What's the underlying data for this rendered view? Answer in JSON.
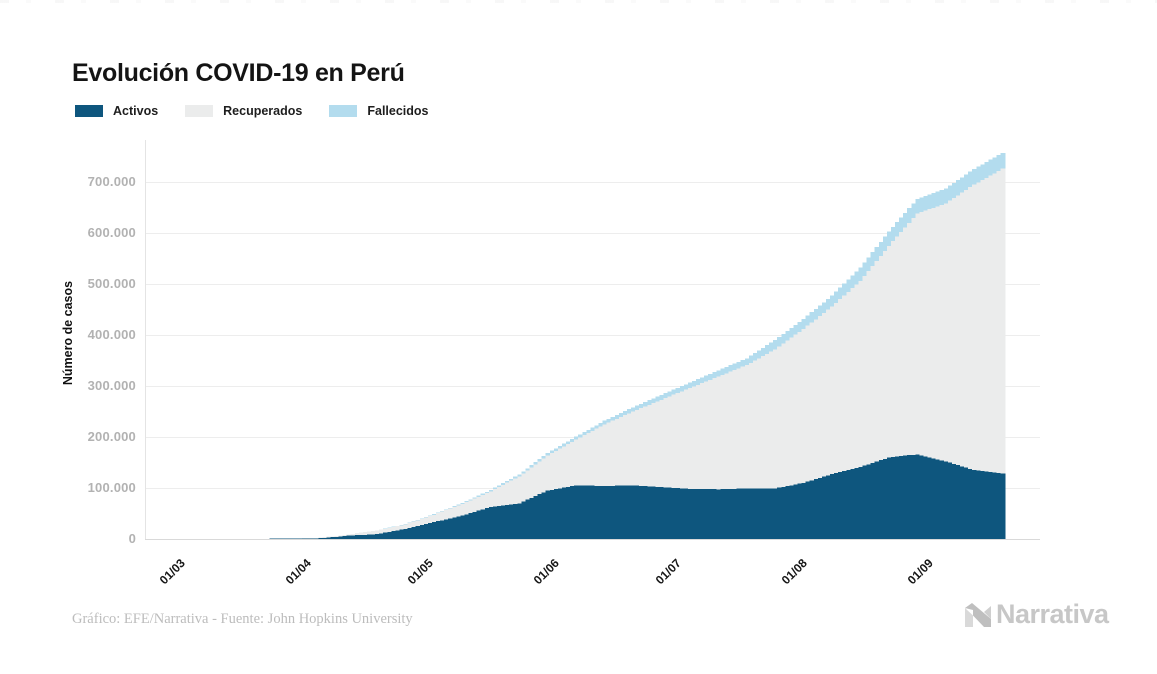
{
  "title": "Evolución COVID-19 en Perú",
  "footer": {
    "credit": "Gráfico: EFE/Narrativa - Fuente: John Hopkins University",
    "brand": "Narrativa",
    "brand_icon": "narrativa-logo-icon"
  },
  "colors": {
    "activos": "#0e567e",
    "recuperados": "#ebecec",
    "fallecidos": "#b3dcee",
    "grid": "#ededed",
    "axis": "#d9d9d9",
    "tick_text": "#b2b2b2"
  },
  "chart_data": {
    "type": "bar",
    "stacked": true,
    "title": "Evolución COVID-19 en Perú",
    "ylabel": "Número de casos",
    "xlabel": "",
    "grid": "horizontal",
    "legend_position": "top-left",
    "ylim": [
      0,
      772000
    ],
    "ytick_values": [
      0,
      100000,
      200000,
      300000,
      400000,
      500000,
      600000,
      700000
    ],
    "ytick_labels": [
      "0",
      "100.000",
      "200.000",
      "300.000",
      "400.000",
      "500.000",
      "600.000",
      "700.000"
    ],
    "xticks": [
      {
        "label": "01/03",
        "day": 6
      },
      {
        "label": "01/04",
        "day": 37
      },
      {
        "label": "01/05",
        "day": 67
      },
      {
        "label": "01/06",
        "day": 98
      },
      {
        "label": "01/07",
        "day": 128
      },
      {
        "label": "01/08",
        "day": 159
      },
      {
        "label": "01/09",
        "day": 190
      }
    ],
    "x": [
      "24/02",
      "02/03",
      "09/03",
      "16/03",
      "23/03",
      "30/03",
      "06/04",
      "13/04",
      "20/04",
      "27/04",
      "04/05",
      "11/05",
      "18/05",
      "25/05",
      "01/06",
      "08/06",
      "15/06",
      "22/06",
      "29/06",
      "06/07",
      "13/07",
      "20/07",
      "27/07",
      "03/08",
      "10/08",
      "17/08",
      "24/08",
      "31/08",
      "07/09",
      "14/09",
      "21/09"
    ],
    "series": [
      {
        "name": "Activos",
        "color": "#0e567e",
        "values": [
          0,
          0,
          10,
          100,
          410,
          900,
          1500,
          6500,
          9500,
          20000,
          33000,
          46000,
          63000,
          70000,
          95000,
          105000,
          104000,
          105000,
          102000,
          98000,
          97500,
          99000,
          99000,
          110000,
          127000,
          141000,
          160000,
          166000,
          152000,
          135000,
          128000
        ]
      },
      {
        "name": "Recuperados",
        "color": "#ebecec",
        "values": [
          0,
          0,
          0,
          1,
          2,
          55,
          1000,
          2700,
          7100,
          8500,
          14500,
          22500,
          30500,
          53000,
          69000,
          90000,
          121000,
          145000,
          171000,
          198000,
          221000,
          242000,
          273000,
          302000,
          329000,
          365000,
          415000,
          472000,
          506000,
          560000,
          598000
        ]
      },
      {
        "name": "Fallecidos",
        "color": "#b3dcee",
        "values": [
          0,
          0,
          0,
          0,
          7,
          30,
          100,
          230,
          450,
          800,
          1400,
          2000,
          2800,
          3700,
          4600,
          5600,
          6900,
          8200,
          9500,
          10800,
          12100,
          13200,
          18400,
          19800,
          21100,
          26300,
          27800,
          29000,
          29700,
          30500,
          31300
        ]
      }
    ]
  }
}
